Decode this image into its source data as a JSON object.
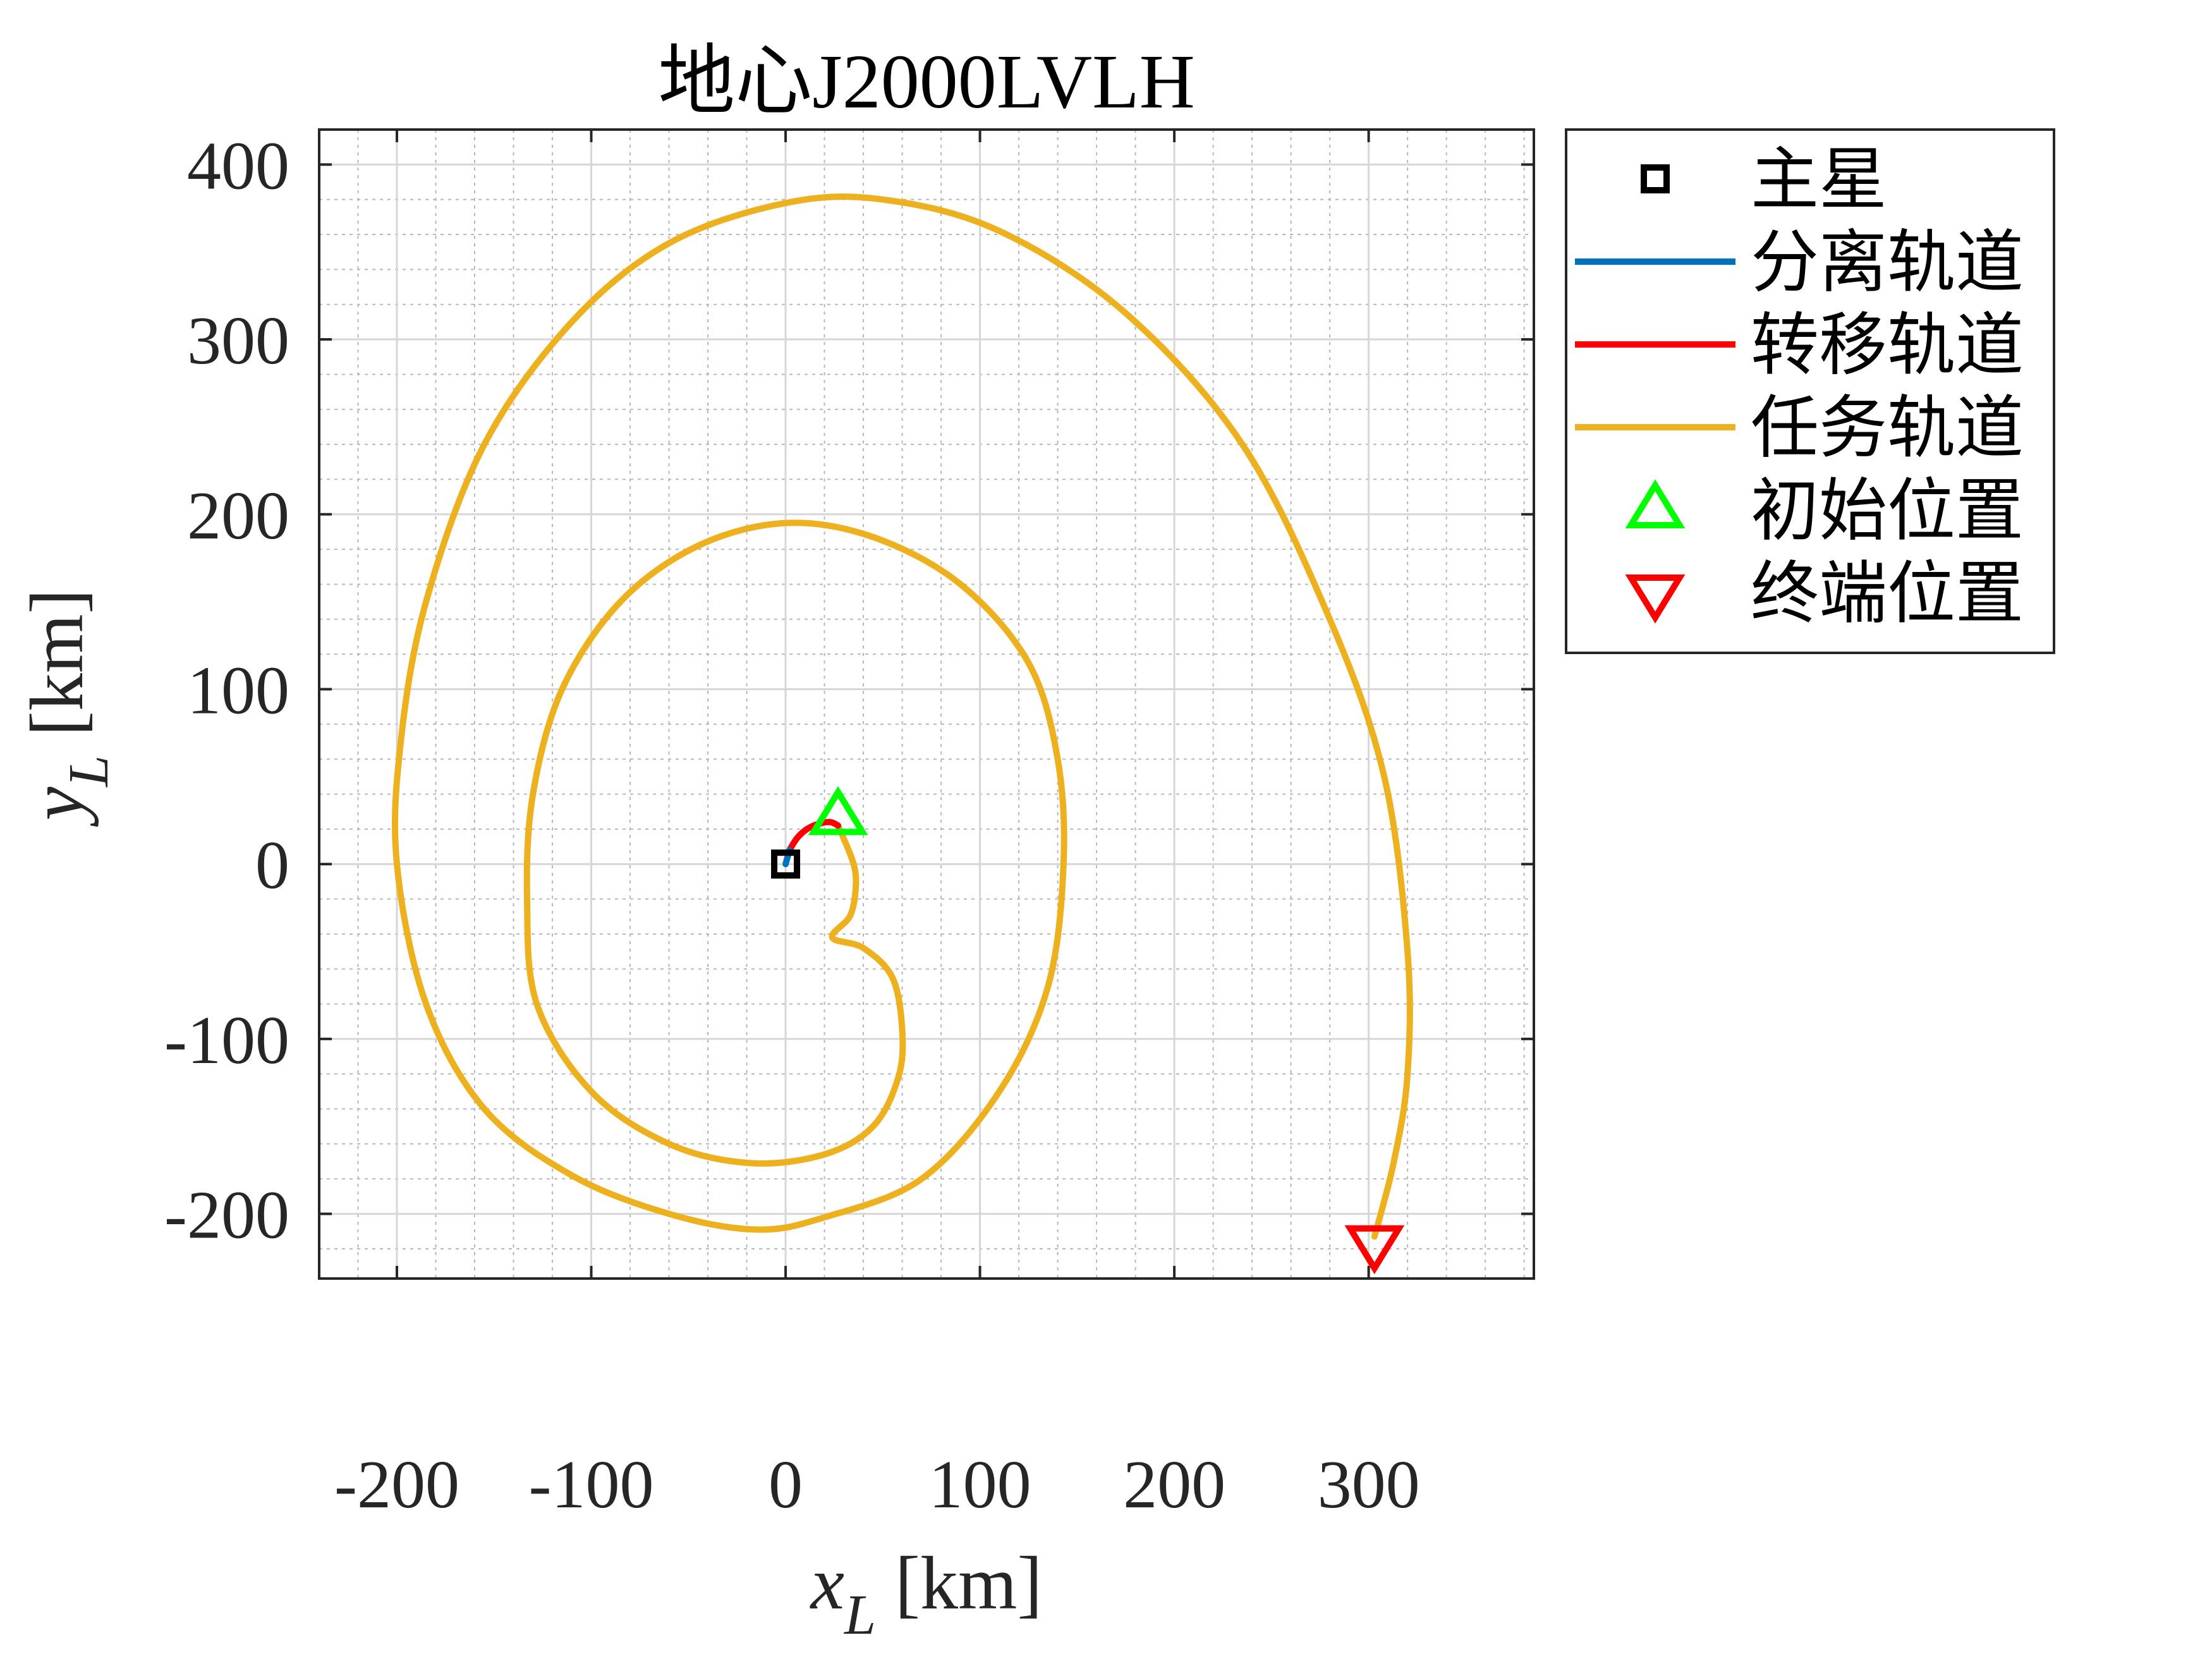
{
  "chart_data": {
    "type": "line",
    "title": "地心J2000LVLH",
    "xlabel": {
      "main": "x",
      "sub": "L",
      "unit": "[km]"
    },
    "ylabel": {
      "main": "y",
      "sub": "L",
      "unit": "[km]"
    },
    "xlim": [
      -240,
      385
    ],
    "ylim": [
      -237,
      420
    ],
    "xticks": [
      -200,
      -100,
      0,
      100,
      200,
      300
    ],
    "yticks": [
      -200,
      -100,
      0,
      100,
      200,
      300,
      400
    ],
    "xtick_labels": [
      "-200",
      "-100",
      "0",
      "100",
      "200",
      "300"
    ],
    "ytick_labels": [
      "-200",
      "-100",
      "0",
      "100",
      "200",
      "300",
      "400"
    ],
    "grid": true,
    "minor_grid": true,
    "legend_position": "outside-right",
    "series": [
      {
        "name": "主星",
        "kind": "marker",
        "marker": "square",
        "color": "#000000",
        "points": [
          [
            0,
            0
          ]
        ]
      },
      {
        "name": "分离轨道",
        "kind": "line",
        "color": "#0072BD",
        "points": [
          [
            0,
            0
          ],
          [
            1,
            4
          ],
          [
            2,
            8
          ]
        ]
      },
      {
        "name": "转移轨道",
        "kind": "line",
        "color": "#FF0000",
        "points": [
          [
            2,
            8
          ],
          [
            6,
            15
          ],
          [
            11,
            20
          ],
          [
            17,
            23
          ],
          [
            23,
            24
          ],
          [
            27,
            22
          ]
        ]
      },
      {
        "name": "任务轨道",
        "kind": "line",
        "color": "#EDB120",
        "points": [
          [
            27,
            22
          ],
          [
            35,
            0
          ],
          [
            36,
            -15
          ],
          [
            33,
            -30
          ],
          [
            24,
            -42
          ],
          [
            40,
            -48
          ],
          [
            55,
            -65
          ],
          [
            60,
            -95
          ],
          [
            58,
            -122
          ],
          [
            45,
            -150
          ],
          [
            20,
            -166
          ],
          [
            -18,
            -171
          ],
          [
            -60,
            -160
          ],
          [
            -100,
            -130
          ],
          [
            -128,
            -80
          ],
          [
            -133,
            -20
          ],
          [
            -130,
            40
          ],
          [
            -115,
            100
          ],
          [
            -85,
            150
          ],
          [
            -45,
            182
          ],
          [
            0,
            195
          ],
          [
            45,
            187
          ],
          [
            90,
            160
          ],
          [
            125,
            115
          ],
          [
            140,
            60
          ],
          [
            143,
            0
          ],
          [
            135,
            -70
          ],
          [
            110,
            -130
          ],
          [
            70,
            -180
          ],
          [
            20,
            -202
          ],
          [
            -15,
            -209
          ],
          [
            -60,
            -200
          ],
          [
            -110,
            -178
          ],
          [
            -155,
            -140
          ],
          [
            -185,
            -80
          ],
          [
            -200,
            0
          ],
          [
            -198,
            70
          ],
          [
            -185,
            150
          ],
          [
            -155,
            240
          ],
          [
            -110,
            310
          ],
          [
            -60,
            355
          ],
          [
            0,
            378
          ],
          [
            50,
            380
          ],
          [
            110,
            362
          ],
          [
            175,
            315
          ],
          [
            235,
            240
          ],
          [
            280,
            140
          ],
          [
            308,
            50
          ],
          [
            320,
            -50
          ],
          [
            320,
            -120
          ],
          [
            313,
            -170
          ],
          [
            303,
            -213
          ]
        ]
      },
      {
        "name": "初始位置",
        "kind": "marker",
        "marker": "triangle-up",
        "color": "#00FF00",
        "points": [
          [
            27,
            27
          ]
        ]
      },
      {
        "name": "终端位置",
        "kind": "marker",
        "marker": "triangle-down",
        "color": "#FF0000",
        "points": [
          [
            303,
            -217
          ]
        ]
      }
    ]
  }
}
